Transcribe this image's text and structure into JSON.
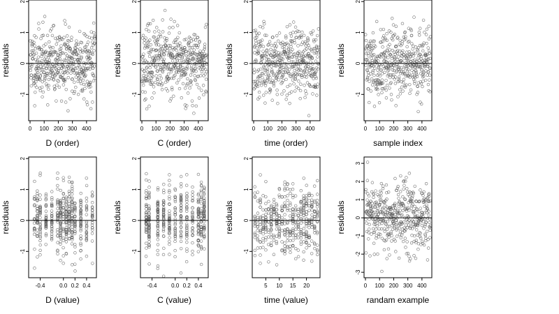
{
  "chart_data": [
    {
      "type": "scatter",
      "xlabel": "D (order)",
      "ylabel": "residuals",
      "xticks": [
        "0",
        "100",
        "200",
        "300",
        "400"
      ],
      "yticks": [
        "-1",
        "0",
        "1",
        "2"
      ],
      "xlim": [
        -10,
        470
      ],
      "ylim": [
        -1.85,
        2.05
      ],
      "hline": 0,
      "points": {
        "n": 460,
        "x_min": 1,
        "x_max": 460,
        "y_mean": 0.02,
        "y_sd": 0.55,
        "seed": 11
      }
    },
    {
      "type": "scatter",
      "xlabel": "C (order)",
      "ylabel": "residuals",
      "xticks": [
        "0",
        "100",
        "200",
        "300",
        "400"
      ],
      "yticks": [
        "-1",
        "0",
        "1",
        "2"
      ],
      "xlim": [
        -10,
        470
      ],
      "ylim": [
        -1.85,
        2.05
      ],
      "hline": 0,
      "points": {
        "n": 460,
        "x_min": 1,
        "x_max": 460,
        "y_mean": 0.02,
        "y_sd": 0.55,
        "seed": 23
      }
    },
    {
      "type": "scatter",
      "xlabel": "time (order)",
      "ylabel": "residuals",
      "xticks": [
        "0",
        "100",
        "200",
        "300",
        "400"
      ],
      "yticks": [
        "-1",
        "0",
        "1",
        "2"
      ],
      "xlim": [
        -10,
        470
      ],
      "ylim": [
        -1.85,
        2.05
      ],
      "hline": 0,
      "points": {
        "n": 460,
        "x_min": 1,
        "x_max": 460,
        "y_mean": 0.02,
        "y_sd": 0.55,
        "seed": 37
      }
    },
    {
      "type": "scatter",
      "xlabel": "sample index",
      "ylabel": "residuals",
      "xticks": [
        "0",
        "100",
        "200",
        "300",
        "400"
      ],
      "yticks": [
        "-1",
        "0",
        "1",
        "2"
      ],
      "xlim": [
        -10,
        470
      ],
      "ylim": [
        -1.85,
        2.05
      ],
      "hline": 0,
      "points": {
        "n": 460,
        "x_min": 1,
        "x_max": 460,
        "y_mean": 0.02,
        "y_sd": 0.55,
        "seed": 41
      }
    },
    {
      "type": "scatter",
      "xlabel": "D (value)",
      "ylabel": "residuals",
      "xticks": [
        "-0.4",
        "0.0",
        "0.2",
        "0.4"
      ],
      "xtick_values": [
        -0.4,
        0.0,
        0.2,
        0.4
      ],
      "yticks": [
        "-1",
        "0",
        "1",
        "2"
      ],
      "xlim": [
        -0.6,
        0.57
      ],
      "ylim": [
        -1.85,
        2.05
      ],
      "hline": 0,
      "points": {
        "n": 460,
        "x_levels": [
          -0.5,
          -0.45,
          -0.4,
          -0.3,
          -0.2,
          -0.1,
          -0.05,
          0.0,
          0.05,
          0.1,
          0.15,
          0.2,
          0.3,
          0.4,
          0.5
        ],
        "y_mean": 0.02,
        "y_sd": 0.55,
        "seed": 53
      }
    },
    {
      "type": "scatter",
      "xlabel": "C (value)",
      "ylabel": "residuals",
      "xticks": [
        "-0.4",
        "0.0",
        "0.2",
        "0.4"
      ],
      "xtick_values": [
        -0.4,
        0.0,
        0.2,
        0.4
      ],
      "yticks": [
        "-1",
        "0",
        "1",
        "2"
      ],
      "xlim": [
        -0.6,
        0.57
      ],
      "ylim": [
        -1.85,
        2.05
      ],
      "hline": 0,
      "points": {
        "n": 460,
        "x_levels": [
          -0.5,
          -0.45,
          -0.3,
          -0.2,
          -0.1,
          0.0,
          0.1,
          0.2,
          0.3,
          0.4,
          0.45,
          0.5
        ],
        "y_mean": 0.02,
        "y_sd": 0.55,
        "seed": 67
      }
    },
    {
      "type": "scatter",
      "xlabel": "time (value)",
      "ylabel": "residuals",
      "xticks": [
        "5",
        "10",
        "15",
        "20"
      ],
      "xtick_values": [
        5,
        10,
        15,
        20
      ],
      "yticks": [
        "-1",
        "0",
        "1",
        "2"
      ],
      "xlim": [
        0,
        25
      ],
      "ylim": [
        -1.85,
        2.05
      ],
      "hline": 0,
      "points": {
        "n": 460,
        "x_levels": [
          1,
          2,
          3,
          4,
          5,
          6,
          7,
          8,
          9,
          10,
          11,
          12,
          13,
          14,
          15,
          16,
          17,
          18,
          19,
          20,
          21,
          22,
          23,
          24
        ],
        "y_mean": 0.02,
        "y_sd": 0.55,
        "seed": 79
      }
    },
    {
      "type": "scatter",
      "xlabel": "randam example",
      "ylabel": "residuals",
      "xticks": [
        "0",
        "100",
        "200",
        "300",
        "400"
      ],
      "yticks": [
        "-3",
        "-2",
        "-1",
        "0",
        "1",
        "2",
        "3"
      ],
      "xlim": [
        -10,
        470
      ],
      "ylim": [
        -3.3,
        3.35
      ],
      "hline": 0,
      "points": {
        "n": 460,
        "x_min": 1,
        "x_max": 460,
        "y_mean": 0.0,
        "y_sd": 1.0,
        "seed": 97
      }
    }
  ],
  "colors": {
    "point_stroke": "#555555",
    "axis": "#000000",
    "background": "#ffffff"
  }
}
